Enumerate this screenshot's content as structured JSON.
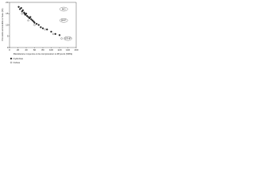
{
  "chart_data": {
    "type": "scatter",
    "y_label": "Porosité accessible à l'eau (%)",
    "x_label": "Résistance moyenne à la compression à 28 jours (MPa)",
    "xlim": [
      0,
      160
    ],
    "xticks": [
      0,
      20,
      40,
      60,
      80,
      100,
      120,
      140,
      160
    ],
    "ylim": [
      0,
      20
    ],
    "yticks": [
      0,
      5,
      10,
      15,
      20
    ],
    "grid": false,
    "series": [
      {
        "name": "Cylindres",
        "color": "#222222",
        "marker": "filled",
        "x": [
          22,
          25,
          28,
          30,
          32,
          35,
          36,
          38,
          40,
          42,
          45,
          48,
          50,
          52,
          55,
          58,
          60,
          65,
          70,
          75,
          80,
          90,
          100,
          110,
          120
        ],
        "values": [
          18,
          17,
          17.5,
          16,
          16.5,
          15.5,
          15,
          14.5,
          15,
          14,
          13.5,
          13,
          13.5,
          12.5,
          12,
          11.5,
          11,
          10.5,
          10,
          9,
          8.5,
          8,
          7,
          6,
          5.5
        ]
      },
      {
        "name": "Cubes",
        "color": "#222222",
        "marker": "open",
        "x": [
          30,
          45,
          60,
          85,
          105,
          125
        ],
        "values": [
          15,
          12,
          10,
          8,
          6,
          4
        ]
      }
    ],
    "annotations": [
      {
        "text": "BO",
        "x": 130,
        "y": 17
      },
      {
        "text": "BHP",
        "x": 130,
        "y": 12
      },
      {
        "text": "BTHP",
        "x": 140,
        "y": 4
      }
    ]
  }
}
